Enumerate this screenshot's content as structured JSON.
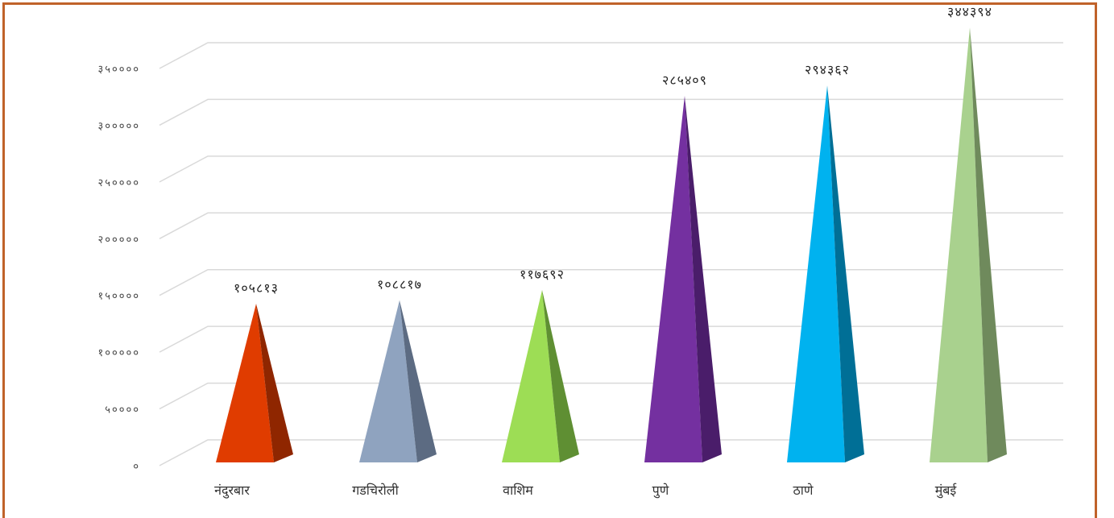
{
  "chart_data": {
    "type": "bar",
    "shape": "pyramid-3d",
    "categories": [
      "नंदुरबार",
      "गडचिरोली",
      "वाशिम",
      "पुणे",
      "ठाणे",
      "मुंबई"
    ],
    "values": [
      105813,
      108817,
      117692,
      285409,
      294362,
      344394
    ],
    "value_labels": [
      "१०५८१३",
      "१०८८१७",
      "११७६९२",
      "२८५४०९",
      "२९४३६२",
      "३४४३९४"
    ],
    "y_ticks": [
      0,
      50000,
      100000,
      150000,
      200000,
      250000,
      300000,
      350000
    ],
    "y_tick_labels": [
      "०",
      "५००००",
      "१०००००",
      "१५००००",
      "२०००००",
      "२५००००",
      "३०००००",
      "३५००००"
    ],
    "ylim": [
      0,
      350000
    ],
    "grid": true,
    "colors": [
      {
        "front": "#e03c00",
        "side": "#8f2600"
      },
      {
        "front": "#8fa3bf",
        "side": "#5c6b82"
      },
      {
        "front": "#9ddd55",
        "side": "#5f8f33"
      },
      {
        "front": "#7430a0",
        "side": "#4a1d6a"
      },
      {
        "front": "#00b2ef",
        "side": "#006f96"
      },
      {
        "front": "#a9d18e",
        "side": "#6f8a5c"
      }
    ]
  }
}
